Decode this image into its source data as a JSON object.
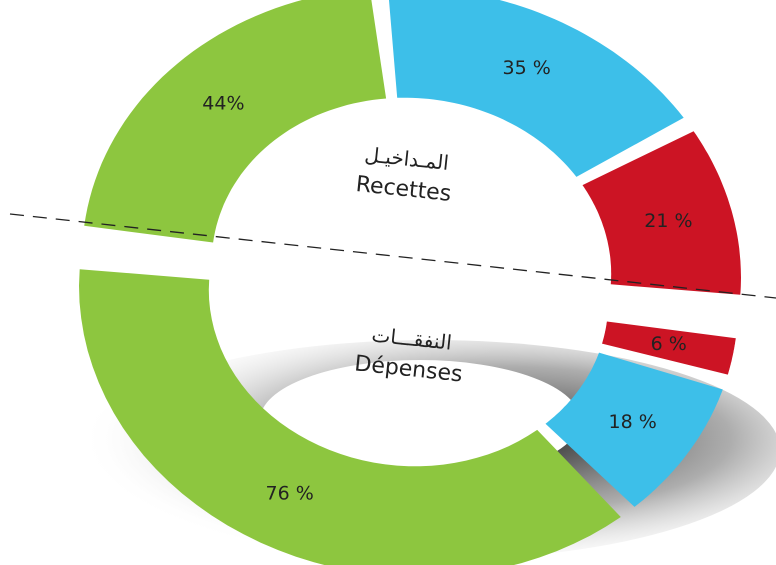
{
  "chart_data": [
    {
      "type": "donut-half",
      "title": "المـداخيـل",
      "subtitle": "Recettes",
      "values": [
        44,
        35,
        21
      ],
      "value_labels": [
        "44%",
        "35 %",
        "21 %"
      ],
      "colors": [
        "#8dc63f",
        "#3dbfe9",
        "#cc1424"
      ]
    },
    {
      "type": "donut-half",
      "title": "النفقـــات",
      "subtitle": "Dépenses",
      "values": [
        6,
        18,
        76
      ],
      "value_labels": [
        "6 %",
        "18 %",
        "76 %"
      ],
      "colors": [
        "#cc1424",
        "#3dbfe9",
        "#8dc63f"
      ]
    }
  ]
}
